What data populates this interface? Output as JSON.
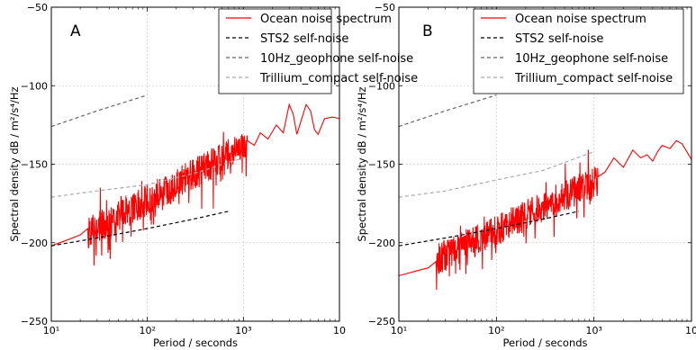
{
  "chart_data": [
    {
      "type": "line",
      "panel": "A",
      "xscale": "log",
      "xlim": [
        10,
        10000
      ],
      "ylim": [
        -250,
        -50
      ],
      "xlabel": "Period / seconds",
      "ylabel": "Spectral density dB / m²/s⁴/Hz",
      "grid": true,
      "legend_position": "top-right",
      "xticks": [
        "10¹",
        "10²",
        "10³",
        "10"
      ],
      "yticks": [
        "−250",
        "−200",
        "−150",
        "−100",
        "−50"
      ],
      "series": [
        {
          "name": "Ocean noise spectrum",
          "color": "#ff0000",
          "style": "solid",
          "x": [
            10,
            15,
            20,
            24,
            1100,
            1300,
            1500,
            1800,
            2200,
            2600,
            3000,
            3300,
            3600,
            4000,
            4500,
            5000,
            5500,
            6000,
            7000,
            8500,
            10000
          ],
          "y": [
            -202,
            -198,
            -195,
            -191,
            -135,
            -138,
            -130,
            -134,
            -125,
            -130,
            -112,
            -118,
            -131,
            -122,
            -112,
            -116,
            -128,
            -131,
            -121,
            -120,
            -121
          ],
          "noise": {
            "x_from": 24,
            "x_to": 1100,
            "trend_start": -194,
            "trend_end": -137,
            "amplitude": 10,
            "seed": 7
          }
        },
        {
          "name": "STS2 self-noise",
          "color": "#000000",
          "style": "dashed",
          "x": [
            10,
            30,
            100,
            300,
            700
          ],
          "y": [
            -202,
            -197,
            -191,
            -185,
            -180
          ]
        },
        {
          "name": "10Hz_geophone self-noise",
          "color": "#666666",
          "style": "dashed",
          "x": [
            10,
            30,
            100
          ],
          "y": [
            -126,
            -116,
            -106
          ]
        },
        {
          "name": "Trillium_compact self-noise",
          "color": "#aaaaaa",
          "style": "dashed",
          "x": [
            10,
            30,
            100,
            300,
            1000
          ],
          "y": [
            -171,
            -167,
            -163,
            -156,
            -146
          ]
        }
      ]
    },
    {
      "type": "line",
      "panel": "B",
      "xscale": "log",
      "xlim": [
        10,
        10000
      ],
      "ylim": [
        -250,
        -50
      ],
      "xlabel": "Period / seconds",
      "ylabel": "Spectral density dB / m²/s⁴/Hz",
      "grid": true,
      "legend_position": "top-right",
      "xticks": [
        "10¹",
        "10²",
        "10³",
        "10"
      ],
      "yticks": [
        "−250",
        "−200",
        "−150",
        "−100",
        "−50"
      ],
      "series": [
        {
          "name": "Ocean noise spectrum",
          "color": "#ff0000",
          "style": "solid",
          "x": [
            10,
            15,
            20,
            24,
            1100,
            1300,
            1600,
            2000,
            2500,
            3000,
            3500,
            4000,
            4500,
            5000,
            6000,
            7000,
            8000,
            10000
          ],
          "y": [
            -221,
            -218,
            -216,
            -212,
            -158,
            -155,
            -146,
            -152,
            -141,
            -146,
            -144,
            -148,
            -142,
            -138,
            -140,
            -135,
            -137,
            -147
          ],
          "noise": {
            "x_from": 24,
            "x_to": 1100,
            "trend_start": -211,
            "trend_end": -160,
            "amplitude": 10,
            "seed": 13
          }
        },
        {
          "name": "STS2 self-noise",
          "color": "#000000",
          "style": "dashed",
          "x": [
            10,
            30,
            100,
            300,
            700
          ],
          "y": [
            -202,
            -197,
            -191,
            -185,
            -180
          ]
        },
        {
          "name": "10Hz_geophone self-noise",
          "color": "#666666",
          "style": "dashed",
          "x": [
            10,
            30,
            100
          ],
          "y": [
            -126,
            -116,
            -106
          ]
        },
        {
          "name": "Trillium_compact self-noise",
          "color": "#aaaaaa",
          "style": "dashed",
          "x": [
            10,
            30,
            100,
            300,
            1000
          ],
          "y": [
            -171,
            -167,
            -160,
            -154,
            -142
          ]
        }
      ]
    }
  ]
}
